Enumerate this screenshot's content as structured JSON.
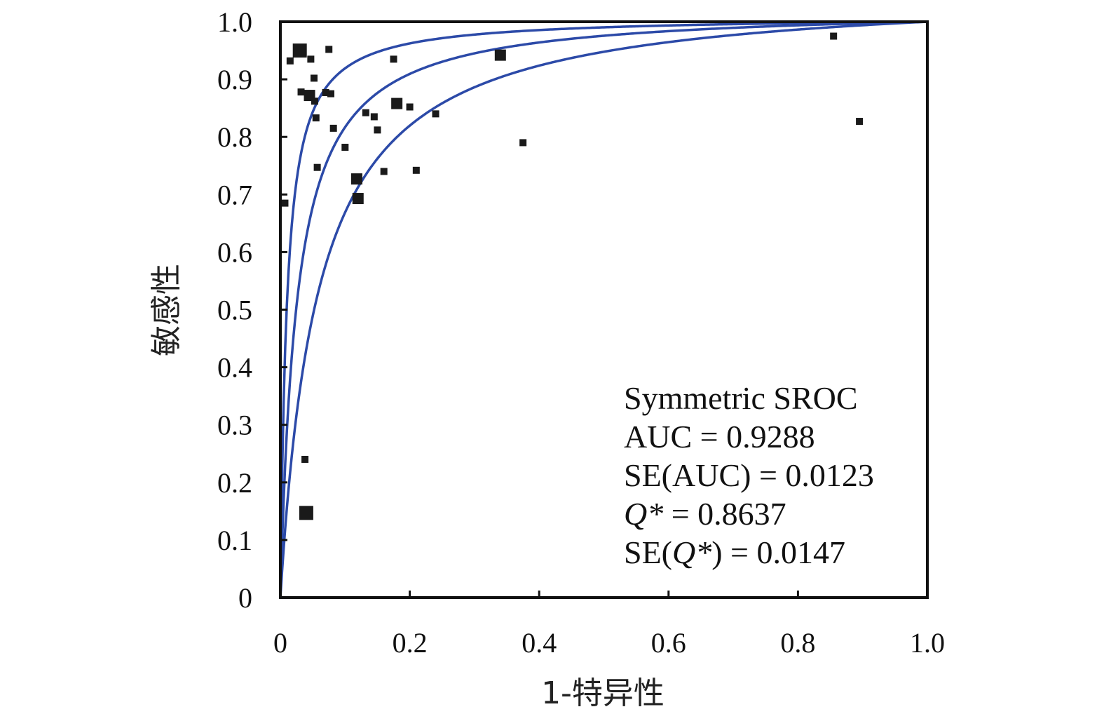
{
  "chart_data": {
    "type": "scatter",
    "xlabel": "1-特异性",
    "ylabel": "敏感性",
    "xlim": [
      0,
      1
    ],
    "ylim": [
      0,
      1
    ],
    "x_ticks": [
      "0",
      "0.2",
      "0.4",
      "0.6",
      "0.8",
      "1.0"
    ],
    "y_ticks": [
      "0",
      "0.1",
      "0.2",
      "0.3",
      "0.4",
      "0.5",
      "0.6",
      "0.7",
      "0.8",
      "0.9",
      "1.0"
    ],
    "grid": false,
    "marker_color": "#1a1a1a",
    "curve_color": "#2c4aa8",
    "points": [
      {
        "x": 0.03,
        "y": 0.95,
        "size": "large"
      },
      {
        "x": 0.047,
        "y": 0.935,
        "size": "small"
      },
      {
        "x": 0.015,
        "y": 0.932,
        "size": "small"
      },
      {
        "x": 0.075,
        "y": 0.952,
        "size": "small"
      },
      {
        "x": 0.052,
        "y": 0.902,
        "size": "small"
      },
      {
        "x": 0.032,
        "y": 0.878,
        "size": "small"
      },
      {
        "x": 0.045,
        "y": 0.872,
        "size": "medium"
      },
      {
        "x": 0.053,
        "y": 0.862,
        "size": "small"
      },
      {
        "x": 0.07,
        "y": 0.877,
        "size": "small"
      },
      {
        "x": 0.078,
        "y": 0.875,
        "size": "small"
      },
      {
        "x": 0.055,
        "y": 0.833,
        "size": "small"
      },
      {
        "x": 0.082,
        "y": 0.815,
        "size": "small"
      },
      {
        "x": 0.1,
        "y": 0.782,
        "size": "small"
      },
      {
        "x": 0.057,
        "y": 0.747,
        "size": "small"
      },
      {
        "x": 0.118,
        "y": 0.727,
        "size": "medium"
      },
      {
        "x": 0.12,
        "y": 0.693,
        "size": "medium"
      },
      {
        "x": 0.132,
        "y": 0.842,
        "size": "small"
      },
      {
        "x": 0.145,
        "y": 0.835,
        "size": "small"
      },
      {
        "x": 0.15,
        "y": 0.812,
        "size": "small"
      },
      {
        "x": 0.16,
        "y": 0.74,
        "size": "small"
      },
      {
        "x": 0.175,
        "y": 0.935,
        "size": "small"
      },
      {
        "x": 0.18,
        "y": 0.858,
        "size": "medium"
      },
      {
        "x": 0.2,
        "y": 0.852,
        "size": "small"
      },
      {
        "x": 0.21,
        "y": 0.742,
        "size": "small"
      },
      {
        "x": 0.24,
        "y": 0.84,
        "size": "small"
      },
      {
        "x": 0.34,
        "y": 0.942,
        "size": "medium"
      },
      {
        "x": 0.375,
        "y": 0.79,
        "size": "small"
      },
      {
        "x": 0.855,
        "y": 0.975,
        "size": "small"
      },
      {
        "x": 0.895,
        "y": 0.827,
        "size": "small"
      },
      {
        "x": 0.007,
        "y": 0.685,
        "size": "small"
      },
      {
        "x": 0.038,
        "y": 0.24,
        "size": "small"
      },
      {
        "x": 0.04,
        "y": 0.147,
        "size": "large"
      }
    ],
    "curves": [
      {
        "role": "upper",
        "q_star": 0.91
      },
      {
        "role": "fit",
        "q_star": 0.8637
      },
      {
        "role": "lower",
        "q_star": 0.81
      }
    ]
  },
  "annotation": {
    "line1": "Symmetric SROC",
    "line2": "AUC = 0.9288",
    "line3": "SE(AUC) = 0.0123",
    "line4_sym": "Q*",
    "line4_val": " = 0.8637",
    "line5_pre": "SE(",
    "line5_sym": "Q*",
    "line5_post": ") = 0.0147"
  }
}
